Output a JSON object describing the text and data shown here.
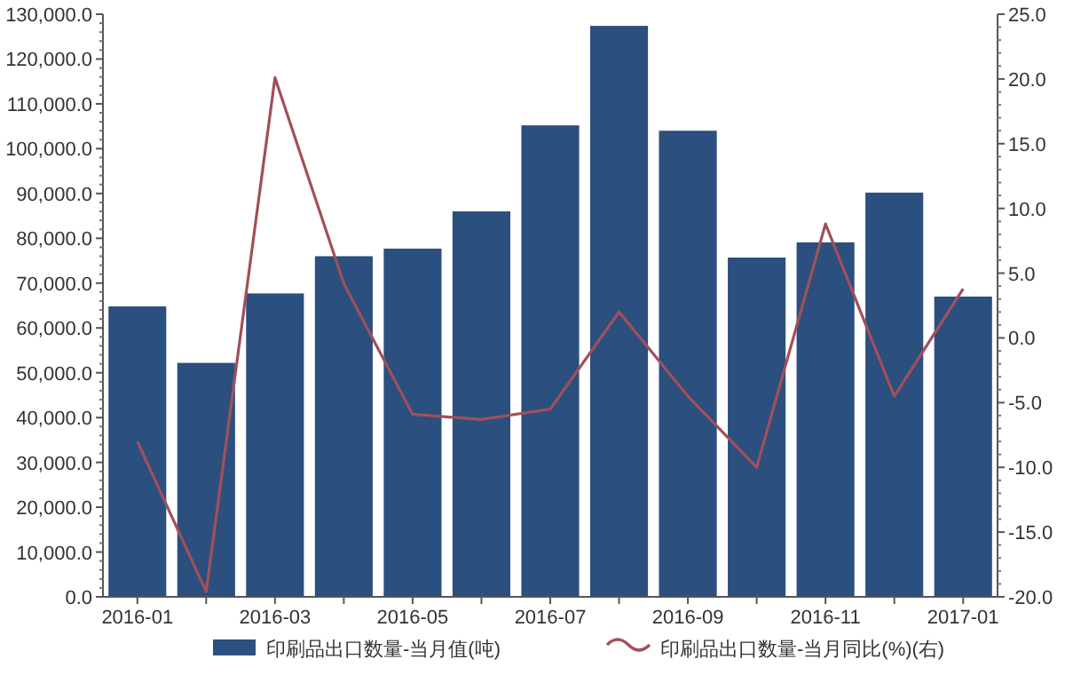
{
  "chart_data": {
    "type": "bar",
    "categories": [
      "2016-01",
      null,
      "2016-03",
      null,
      "2016-05",
      null,
      "2016-07",
      null,
      "2016-09",
      null,
      "2016-11",
      null,
      "2017-01"
    ],
    "series": [
      {
        "name": "印刷品出口数量-当月值(吨)",
        "color": "#2b4f7e",
        "values": [
          64800,
          52200,
          67700,
          76000,
          77700,
          86000,
          105200,
          127400,
          104000,
          75700,
          79100,
          90200,
          67000
        ]
      },
      {
        "name": "印刷品出口数量-当月同比(%)(右)",
        "type": "line",
        "axis": "y2",
        "color": "#a0505a",
        "values": [
          -8.0,
          -19.6,
          20.1,
          4.2,
          -5.9,
          -6.3,
          -5.5,
          2.0,
          -4.5,
          -10.0,
          8.8,
          -4.5,
          3.8
        ]
      }
    ],
    "ylim": [
      0,
      130000
    ],
    "yticks": [
      {
        "value": 0,
        "label": "0.0"
      },
      {
        "value": 10000,
        "label": "10,000.0"
      },
      {
        "value": 20000,
        "label": "20,000.0"
      },
      {
        "value": 30000,
        "label": "30,000.0"
      },
      {
        "value": 40000,
        "label": "40,000.0"
      },
      {
        "value": 50000,
        "label": "50,000.0"
      },
      {
        "value": 60000,
        "label": "60,000.0"
      },
      {
        "value": 70000,
        "label": "70,000.0"
      },
      {
        "value": 80000,
        "label": "80,000.0"
      },
      {
        "value": 90000,
        "label": "90,000.0"
      },
      {
        "value": 100000,
        "label": "100,000.0"
      },
      {
        "value": 110000,
        "label": "110,000.0"
      },
      {
        "value": 120000,
        "label": "120,000.0"
      },
      {
        "value": 130000,
        "label": "130,000.0"
      }
    ],
    "y2lim": [
      -20,
      25
    ],
    "y2ticks": [
      {
        "value": -20,
        "label": "-20.0"
      },
      {
        "value": -15,
        "label": "-15.0"
      },
      {
        "value": -10,
        "label": "-10.0"
      },
      {
        "value": -5,
        "label": "-5.0"
      },
      {
        "value": 0,
        "label": "0.0"
      },
      {
        "value": 5,
        "label": "5.0"
      },
      {
        "value": 10,
        "label": "10.0"
      },
      {
        "value": 15,
        "label": "15.0"
      },
      {
        "value": 20,
        "label": "20.0"
      },
      {
        "value": 25,
        "label": "25.0"
      }
    ],
    "legend": "bottom",
    "grid": false,
    "marker": "none"
  }
}
